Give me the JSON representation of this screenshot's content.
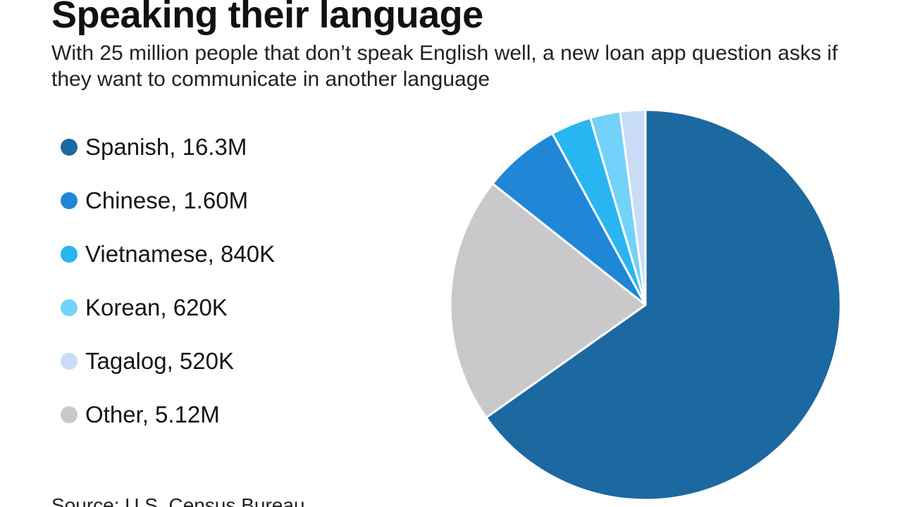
{
  "header": {
    "title": "Speaking their language",
    "subtitle": "With 25 million people that don’t speak English well, a new loan app question asks if they want to communicate in another language"
  },
  "source": "Source: U.S. Census Bureau",
  "legend": [
    {
      "label": "Spanish, 16.3M",
      "color": "#1c68a0"
    },
    {
      "label": "Chinese, 1.60M",
      "color": "#1f87d6"
    },
    {
      "label": "Vietnamese, 840K",
      "color": "#29b6f0"
    },
    {
      "label": "Korean, 620K",
      "color": "#72d2f9"
    },
    {
      "label": "Tagalog, 520K",
      "color": "#c8dcf6"
    },
    {
      "label": "Other, 5.12M",
      "color": "#c9c9cc"
    }
  ],
  "chart_data": {
    "type": "pie",
    "title": "Speaking their language",
    "start_angle": "12 o'clock",
    "direction": "clockwise",
    "unit": "people",
    "slices": [
      {
        "name": "Spanish",
        "value": 16300000,
        "color": "#1c68a0"
      },
      {
        "name": "Other",
        "value": 5120000,
        "color": "#c9c9cc"
      },
      {
        "name": "Chinese",
        "value": 1600000,
        "color": "#1f87d6"
      },
      {
        "name": "Vietnamese",
        "value": 840000,
        "color": "#29b6f0"
      },
      {
        "name": "Korean",
        "value": 620000,
        "color": "#72d2f9"
      },
      {
        "name": "Tagalog",
        "value": 520000,
        "color": "#c8dcf6"
      }
    ]
  }
}
